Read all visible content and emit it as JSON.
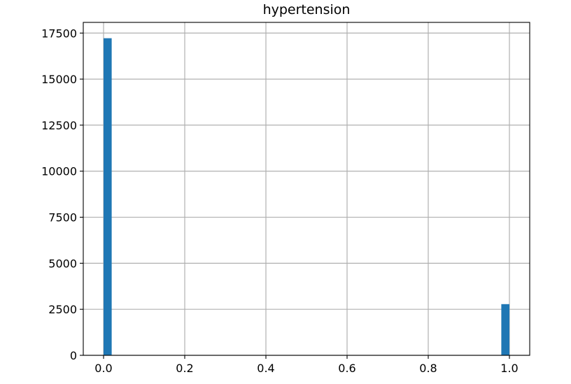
{
  "chart_data": {
    "type": "bar",
    "title": "hypertension",
    "xlabel": "",
    "ylabel": "",
    "bins": 50,
    "bin_range": [
      0,
      1
    ],
    "bars": [
      {
        "x": 0.0,
        "count": 17220
      },
      {
        "x": 1.0,
        "count": 2780
      }
    ],
    "xlim": [
      -0.05,
      1.05
    ],
    "ylim": [
      0,
      18080
    ],
    "xticks": [
      0.0,
      0.2,
      0.4,
      0.6,
      0.8,
      1.0
    ],
    "xtick_labels": [
      "0.0",
      "0.2",
      "0.4",
      "0.6",
      "0.8",
      "1.0"
    ],
    "yticks": [
      0,
      2500,
      5000,
      7500,
      10000,
      12500,
      15000,
      17500
    ],
    "ytick_labels": [
      "0",
      "2500",
      "5000",
      "7500",
      "10000",
      "12500",
      "15000",
      "17500"
    ],
    "grid": true,
    "bar_color": "#1f77b4"
  }
}
